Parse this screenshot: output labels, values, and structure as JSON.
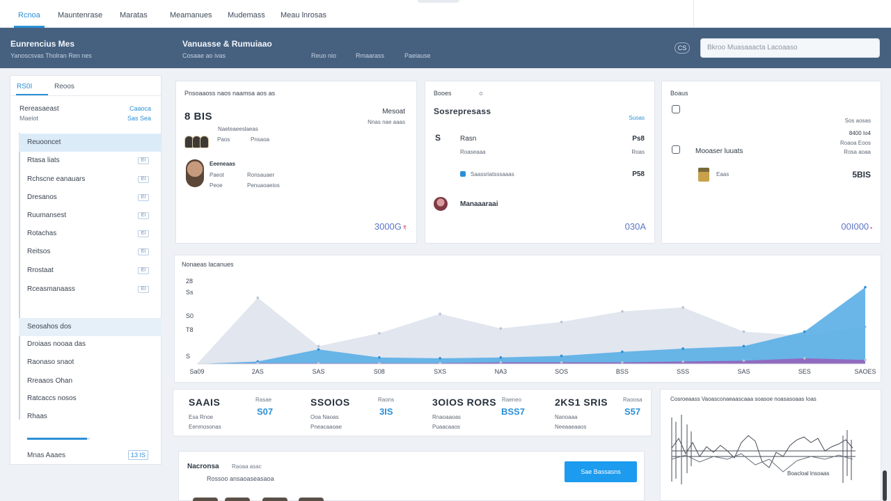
{
  "colors": {
    "accent": "#2b8fd6",
    "header": "#46607f",
    "area_light": "#dfe5ee",
    "area_blue": "#5aaee6",
    "area_purple": "#9b59b6"
  },
  "top_tabs": [
    {
      "label": "Rcnoa",
      "active": true
    },
    {
      "label": "Mauntenrase",
      "active": false
    },
    {
      "label": "Maratas",
      "active": false
    },
    {
      "label": "Meamanues",
      "active": false
    },
    {
      "label": "Mudemass",
      "active": false
    },
    {
      "label": "Meau lnrosas",
      "active": false
    }
  ],
  "header": {
    "brand": "Eunrencius Mes",
    "brand_sub": "Yanoscsvas Tholran Ren nes",
    "page_title": "Vanuasse & Rumuiaao",
    "links": [
      "Cosaae ao ivas",
      "Reuo nio",
      "Rmaarass",
      "Paeiause"
    ],
    "icon_label": "CS",
    "search_placeholder": "Bkroo Muasaaacta Lacoaaso",
    "search_icon": "search-icon"
  },
  "sidebar": {
    "tabs": [
      "RS0I",
      "Reoos"
    ],
    "section_title": "Rereasaeast",
    "section_sub": "Maeiot",
    "section_link_1": "Caaoca",
    "section_link_2": "Sas Sea",
    "items": [
      {
        "label": "Reuooncet",
        "badge": "",
        "state": "selected"
      },
      {
        "label": "Rtasa liats",
        "badge": "EI",
        "state": ""
      },
      {
        "label": "Rchscne eanauars",
        "badge": "EI",
        "state": ""
      },
      {
        "label": "Dresanos",
        "badge": "EI",
        "state": ""
      },
      {
        "label": "Ruumansest",
        "badge": "EI",
        "state": ""
      },
      {
        "label": "Rotachas",
        "badge": "EI",
        "state": ""
      },
      {
        "label": "Reitsos",
        "badge": "EI",
        "state": ""
      },
      {
        "label": "Rrostaat",
        "badge": "EI",
        "state": ""
      },
      {
        "label": "Rceasmanaass",
        "badge": "EI",
        "state": ""
      },
      {
        "label": "Seosahos dos",
        "badge": "",
        "state": "highlight"
      },
      {
        "label": "Droiaas nooaa das",
        "badge": "",
        "state": ""
      },
      {
        "label": "Raonaso snaot",
        "badge": "",
        "state": ""
      },
      {
        "label": "Rreaaos Ohan",
        "badge": "",
        "state": ""
      },
      {
        "label": "Ratcaccs nosos",
        "badge": "",
        "state": ""
      },
      {
        "label": "Rhaas",
        "badge": "",
        "state": ""
      }
    ],
    "progress": 0.95,
    "footer_label": "Mnas Aaaes",
    "footer_value": "13 IS"
  },
  "card1": {
    "title": "Pnsoaaoss naos naamsa aos as",
    "big": "8 BIS",
    "right_title": "Mesoat",
    "right_sub": "Nnas nae aaas",
    "row1_top": "Naeteaeeslaeas",
    "row1_a": "Paos",
    "row1_b": "Pnsaoa",
    "row2_top": "Eeeneaas",
    "row2_a": "Paeot",
    "row2_b": "Ronsauaer",
    "row2_c": "Peoe",
    "row2_d": "Penuaoaeios",
    "total": "3000G",
    "total_mark": "₹"
  },
  "card2": {
    "label": "Booes",
    "label_mark": "o",
    "big": "Sosrepresass",
    "right_sub": "Suoas",
    "r1_icon": "S",
    "r1_label": "Rasn",
    "r1_value": "Ps8",
    "r1_sub": "Roaseaaa",
    "r1_sub_value": "Roas",
    "r2_label": "Saassriatsssaaas",
    "r2_value": "P58",
    "r3_label": "Manaaaraai",
    "total": "030A"
  },
  "card3": {
    "title": "Boaus",
    "r0_sub": "Sos aosas",
    "r1_value": "8400 Io4",
    "r1_sub": "Roaoa Eoos",
    "r1_label": "Mooaser luuats",
    "r1_sub2": "Rosa aoaa",
    "r2_label": "Eaas",
    "r2_value": "5BIS",
    "total": "00I000",
    "total_mark": "▪"
  },
  "trend": {
    "title": "Nonaeas lacanues",
    "y_ticks": [
      "28",
      "Ss",
      "S0",
      "T8",
      "S"
    ],
    "x_ticks": [
      "Sa09",
      "2AS",
      "SAS",
      "S08",
      "SXS",
      "NA3",
      "SOS",
      "BSS",
      "SSS",
      "SAS",
      "SES",
      "SAOES"
    ]
  },
  "chart_data": {
    "type": "area",
    "title": "Nonaeas lacanues",
    "xlabel": "",
    "ylabel": "",
    "x": [
      "Sa09",
      "2AS",
      "SAS",
      "S08",
      "SXS",
      "NA3",
      "SOS",
      "BSS",
      "SSS",
      "SAS",
      "SES",
      "SAOES"
    ],
    "ylim": [
      0,
      100
    ],
    "grid": false,
    "series": [
      {
        "name": "",
        "color": "#dfe5ee",
        "values": [
          0,
          82,
          22,
          38,
          62,
          44,
          52,
          65,
          70,
          40,
          35,
          46
        ]
      },
      {
        "name": "",
        "color": "#5aaee6",
        "values": [
          0,
          3,
          18,
          8,
          7,
          8,
          10,
          15,
          19,
          22,
          40,
          95
        ]
      },
      {
        "name": "",
        "color": "#9b59b6",
        "values": [
          0,
          1,
          1,
          1,
          1,
          2,
          2,
          2,
          3,
          4,
          7,
          5
        ]
      }
    ]
  },
  "stats": [
    {
      "big": "SAAIS",
      "tag": "Rasae",
      "accent": "S07",
      "sub1": "Esa Rnoe",
      "sub2": "Eenmosonas"
    },
    {
      "big": "SSOIOS",
      "tag": "Raons",
      "accent": "3IS",
      "sub1": "Ooa Naoas",
      "sub2": "Pneacaaoae"
    },
    {
      "big": "3OIOS RORS",
      "tag": "Raeneo",
      "accent": "BSS7",
      "sub1": "Rnaoaaoas",
      "sub2": "Puaacaaos"
    },
    {
      "big": "2KS1 SRIS",
      "tag": "Raoosa",
      "accent": "S57",
      "sub1": "Nanoaaa",
      "sub2": "Neeaaeaaos"
    }
  ],
  "spark": {
    "title": "Cosroeaass Vaoasconaeaascaaa soasoe noasasoaas Ioas",
    "legend": "Boacloal lnsoaas"
  },
  "bottom": {
    "title": "Nacronsa",
    "tag": "Raoaa asac",
    "sub": "Rossoo ansaoaseasaoa",
    "button": "Sae Bassasns"
  }
}
